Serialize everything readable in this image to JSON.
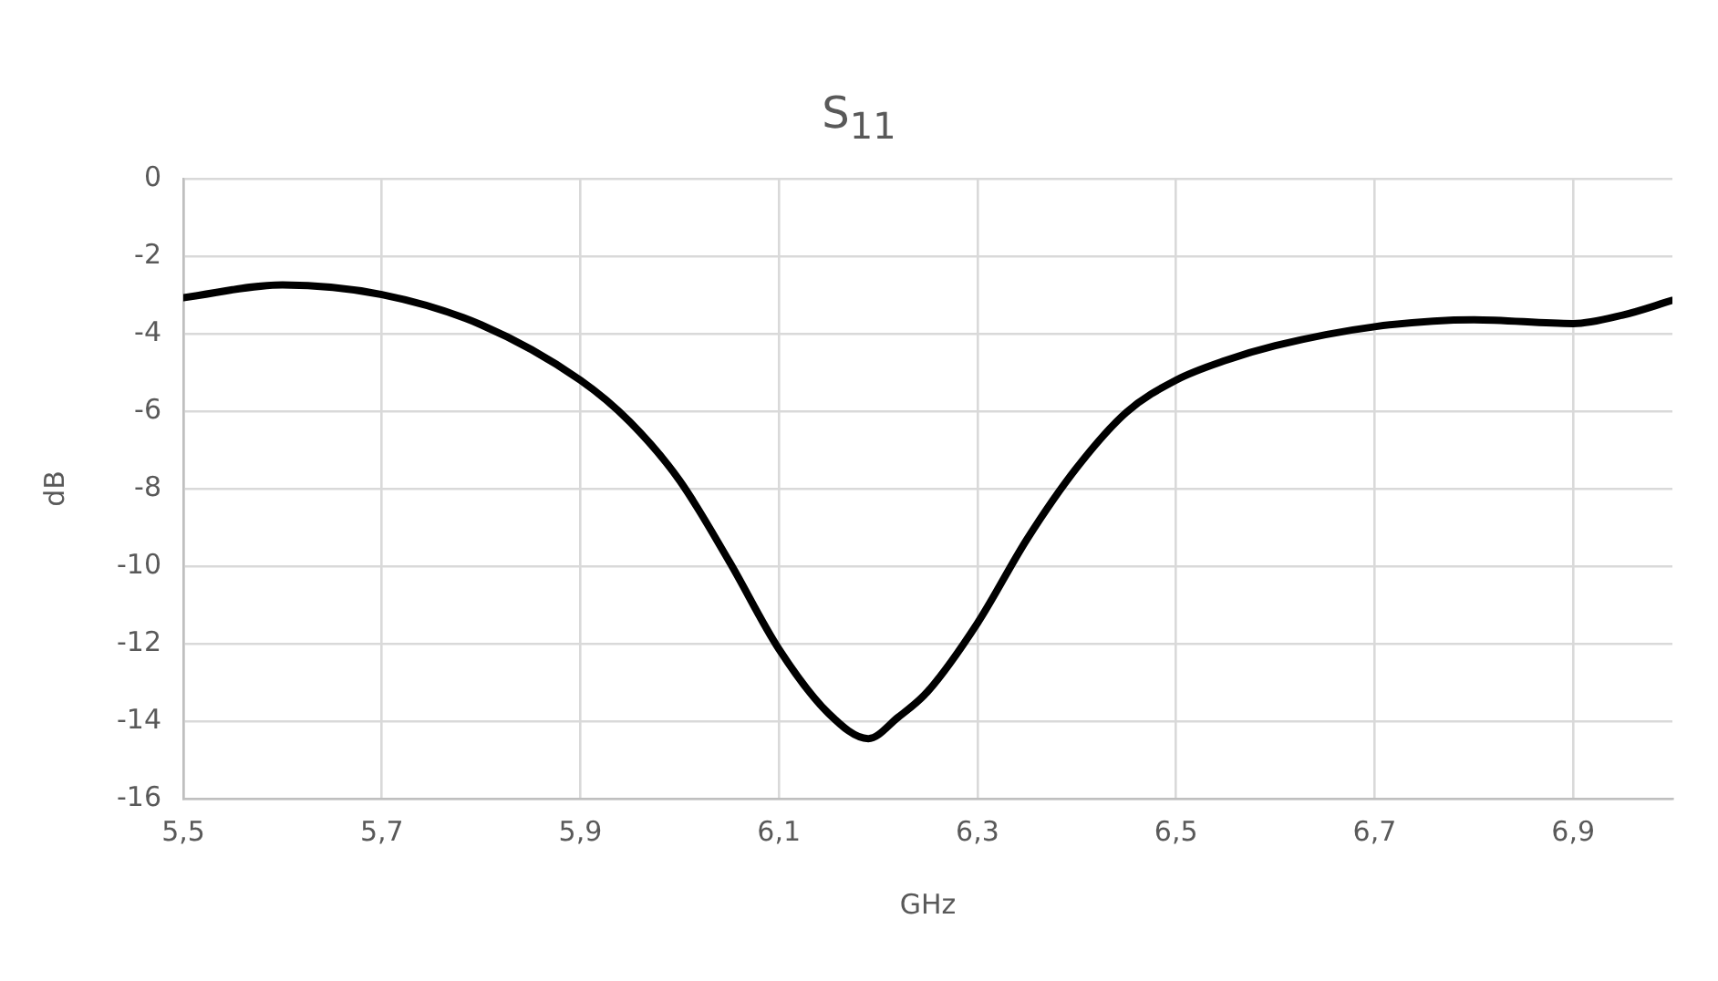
{
  "chart_data": {
    "type": "line",
    "title": "S$_{11}$",
    "xlabel": "GHz",
    "ylabel": "dB",
    "xlim": [
      5.5,
      7.0
    ],
    "xticks": [
      {
        "value": 5.5,
        "label": "5,5"
      },
      {
        "value": 5.7,
        "label": "5,7"
      },
      {
        "value": 5.9,
        "label": "5,9"
      },
      {
        "value": 6.1,
        "label": "6,1"
      },
      {
        "value": 6.3,
        "label": "6,3"
      },
      {
        "value": 6.5,
        "label": "6,5"
      },
      {
        "value": 6.7,
        "label": "6,7"
      },
      {
        "value": 6.9,
        "label": "6,9"
      }
    ],
    "ylim": [
      -16,
      0
    ],
    "yticks": [
      -16,
      -14,
      -12,
      -10,
      -8,
      -6,
      -4,
      -2,
      0
    ],
    "grid": true,
    "legend": false,
    "marker": "none",
    "line_style": "solid",
    "series": [
      {
        "color": "#000000",
        "x": [
          5.5,
          5.6,
          5.7,
          5.8,
          5.9,
          5.95,
          6.0,
          6.05,
          6.1,
          6.15,
          6.19,
          6.22,
          6.25,
          6.3,
          6.35,
          6.4,
          6.45,
          6.5,
          6.55,
          6.6,
          6.7,
          6.8,
          6.9,
          6.95,
          7.0
        ],
        "values": [
          -3.07,
          -2.74,
          -2.99,
          -3.77,
          -5.2,
          -6.28,
          -7.79,
          -9.88,
          -12.14,
          -13.8,
          -14.45,
          -13.9,
          -13.23,
          -11.47,
          -9.3,
          -7.46,
          -6.03,
          -5.2,
          -4.69,
          -4.31,
          -3.82,
          -3.64,
          -3.74,
          -3.52,
          -3.14
        ]
      }
    ]
  }
}
